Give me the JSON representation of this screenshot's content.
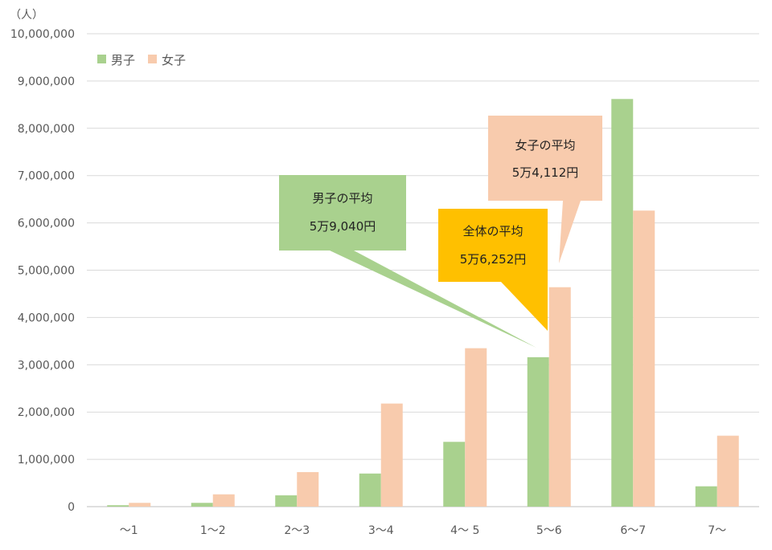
{
  "chart_data": {
    "type": "bar",
    "unit_label": "（人）",
    "categories": [
      "～1",
      "1～2",
      "2～3",
      "3～4",
      "4～ 5",
      "5～6",
      "6～7",
      "7～"
    ],
    "series": [
      {
        "name": "男子",
        "color": "#a9d18e",
        "values": [
          30000,
          80000,
          240000,
          700000,
          1370000,
          3160000,
          8620000,
          430000
        ]
      },
      {
        "name": "女子",
        "color": "#f8cbad",
        "values": [
          80000,
          260000,
          730000,
          2180000,
          3350000,
          4640000,
          6260000,
          1500000
        ]
      }
    ],
    "ylim": [
      0,
      10000000
    ],
    "yticks": [
      0,
      1000000,
      2000000,
      3000000,
      4000000,
      5000000,
      6000000,
      7000000,
      8000000,
      9000000,
      10000000
    ],
    "ytick_labels": [
      "0",
      "1,000,000",
      "2,000,000",
      "3,000,000",
      "4,000,000",
      "5,000,000",
      "6,000,000",
      "7,000,000",
      "8,000,000",
      "9,000,000",
      "10,000,000"
    ],
    "grid": true,
    "legend_position": "top-left",
    "annotations": [
      {
        "id": "male",
        "line1": "男子の平均",
        "line2": "5万9,040円",
        "color": "#a9d18e"
      },
      {
        "id": "female",
        "line1": "女子の平均",
        "line2": "5万4,112円",
        "color": "#f8cbad"
      },
      {
        "id": "total",
        "line1": "全体の平均",
        "line2": "5万6,252円",
        "color": "#ffc000"
      }
    ]
  }
}
